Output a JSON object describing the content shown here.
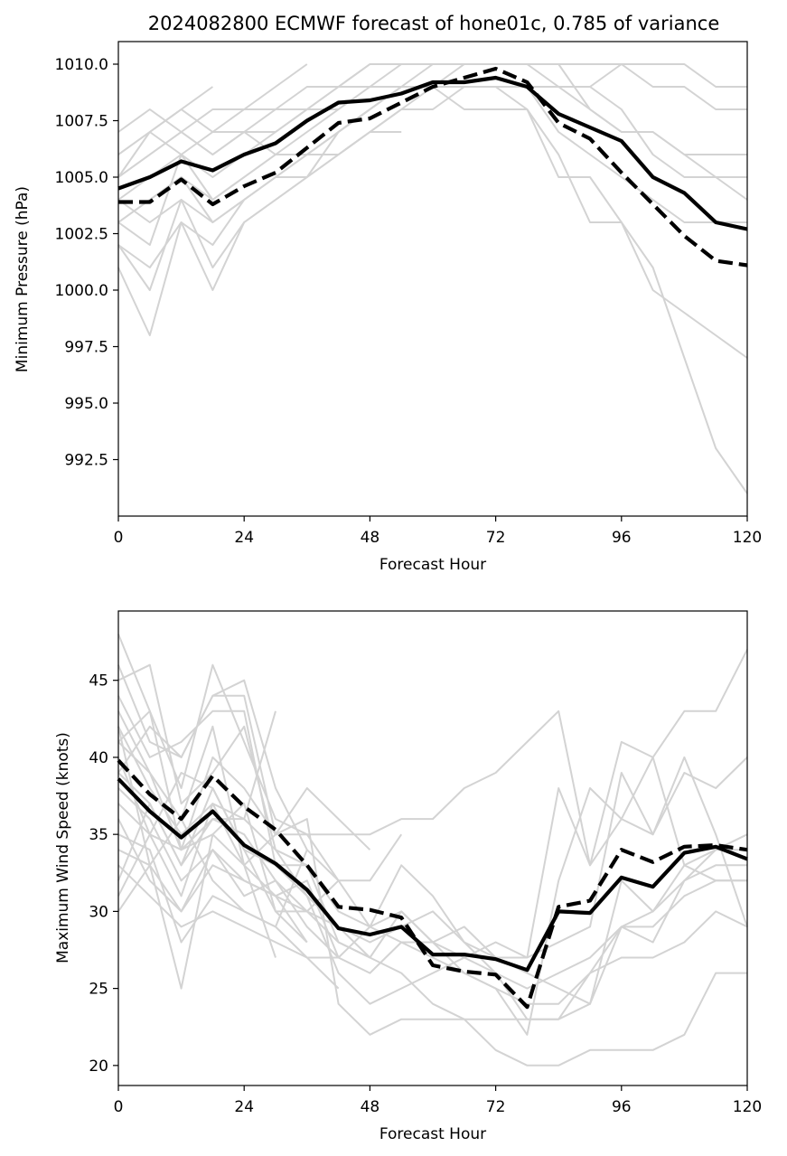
{
  "chart_data": [
    {
      "type": "line",
      "title": "2024082800 ECMWF forecast of hone01c, 0.785 of variance",
      "xlabel": "Forecast Hour",
      "ylabel": "Minimum Pressure (hPa)",
      "xlim": [
        0,
        120
      ],
      "ylim": [
        990.0,
        1011.0
      ],
      "xticks": [
        0,
        24,
        48,
        72,
        96,
        120
      ],
      "xtick_labels": [
        "0",
        "24",
        "48",
        "72",
        "96",
        "120"
      ],
      "yticks": [
        992.5,
        995.0,
        997.5,
        1000.0,
        1002.5,
        1005.0,
        1007.5,
        1010.0
      ],
      "ytick_labels": [
        "992.5",
        "995.0",
        "997.5",
        "1000.0",
        "1002.5",
        "1005.0",
        "1007.5",
        "1010.0"
      ],
      "grid": false,
      "colors": {
        "member": "#d3d3d3",
        "main": "#000000"
      },
      "x": [
        0,
        6,
        12,
        18,
        24,
        30,
        36,
        42,
        48,
        54,
        60,
        66,
        72,
        78,
        84,
        90,
        96,
        102,
        108,
        114,
        120
      ],
      "members": [
        {
          "values": [
            1006,
            1007,
            1008,
            1007,
            1008,
            1008,
            1009,
            1009,
            1010,
            1010,
            1010,
            1010,
            1010,
            1010,
            1010,
            1010,
            1010,
            1010,
            1010,
            1009,
            1009
          ]
        },
        {
          "values": [
            1005,
            1006,
            1007,
            1006,
            1007,
            1007,
            1008,
            1008,
            1009,
            1009,
            1009,
            1009,
            1009,
            1009,
            1009,
            1009,
            1010,
            1009,
            1009,
            1008,
            1008
          ]
        },
        {
          "values": [
            1004,
            1005,
            1006,
            1005,
            1006,
            1007,
            1008,
            1009,
            1009,
            1010,
            1010,
            1010,
            1010,
            1010,
            1010,
            1008,
            1007,
            1007,
            1006,
            1006,
            1006
          ]
        },
        {
          "values": [
            1003,
            1004,
            1005,
            1004,
            1005,
            1006,
            1006,
            1007,
            1008,
            1009,
            1009,
            1010,
            1010,
            1010,
            1009,
            1009,
            1008,
            1006,
            1005,
            1005,
            1004
          ]
        },
        {
          "values": [
            1003,
            1004,
            1005,
            1003,
            1004,
            1005,
            1006,
            1007,
            1008,
            1009,
            1009,
            1009,
            1009,
            1009,
            1007,
            1006,
            1005,
            1004,
            1003,
            1003,
            1003
          ]
        },
        {
          "values": [
            1002,
            1001,
            1003,
            1002,
            1004,
            1005,
            1006,
            1007,
            1008,
            1009,
            1009,
            1009,
            1009,
            1008,
            1005,
            1005,
            1003,
            1001,
            997,
            993,
            991
          ]
        },
        {
          "values": [
            1002,
            1000,
            1004,
            1001,
            1003,
            1004,
            1005,
            1006,
            1007,
            1008,
            1009,
            1008,
            1008,
            1008,
            1006,
            1003,
            1003,
            1000,
            999,
            998,
            997
          ]
        },
        {
          "values": [
            1001,
            998,
            1003,
            1000,
            1003,
            1004,
            1005,
            1006,
            1007,
            1008,
            1008,
            1009,
            1009,
            1009,
            1009,
            1008,
            1007,
            1007,
            1006,
            1005,
            1005
          ]
        },
        {
          "values": [
            1007,
            1008,
            1007,
            1008,
            1008,
            1009,
            1010
          ]
        },
        {
          "values": [
            1006,
            1007,
            1008,
            1009
          ]
        },
        {
          "values": [
            1005,
            1006,
            1007,
            1006,
            1007,
            1006,
            1006,
            1006,
            1007,
            1007
          ]
        },
        {
          "values": [
            1004,
            1003,
            1004,
            1003,
            1004,
            1005,
            1005,
            1007,
            1008,
            1009,
            1010,
            1010
          ]
        },
        {
          "values": [
            1003,
            1002,
            1006,
            1004,
            1005,
            1006,
            1007,
            1008
          ]
        },
        {
          "values": [
            1005,
            1007,
            1006,
            1007,
            1007,
            1008,
            1008,
            1009,
            1010
          ]
        }
      ],
      "series": [
        {
          "style": "solid",
          "values": [
            1004.5,
            1005.0,
            1005.7,
            1005.3,
            1006.0,
            1006.5,
            1007.5,
            1008.3,
            1008.4,
            1008.7,
            1009.2,
            1009.2,
            1009.4,
            1009.0,
            1007.8,
            1007.2,
            1006.6,
            1005.0,
            1004.3,
            1003.0,
            1002.7
          ]
        },
        {
          "style": "dashed",
          "values": [
            1003.9,
            1003.9,
            1004.9,
            1003.8,
            1004.6,
            1005.2,
            1006.3,
            1007.4,
            1007.6,
            1008.3,
            1009.0,
            1009.4,
            1009.8,
            1009.2,
            1007.4,
            1006.7,
            1005.2,
            1003.8,
            1002.4,
            1001.3,
            1001.1
          ]
        }
      ]
    },
    {
      "type": "line",
      "title": "",
      "xlabel": "Forecast Hour",
      "ylabel": "Maximum Wind Speed (knots)",
      "xlim": [
        0,
        120
      ],
      "ylim": [
        18.7,
        49.5
      ],
      "xticks": [
        0,
        24,
        48,
        72,
        96,
        120
      ],
      "xtick_labels": [
        "0",
        "24",
        "48",
        "72",
        "96",
        "120"
      ],
      "yticks": [
        20,
        25,
        30,
        35,
        40,
        45
      ],
      "ytick_labels": [
        "20",
        "25",
        "30",
        "35",
        "40",
        "45"
      ],
      "grid": false,
      "colors": {
        "member": "#d3d3d3",
        "main": "#000000"
      },
      "x": [
        0,
        6,
        12,
        18,
        24,
        30,
        36,
        42,
        48,
        54,
        60,
        66,
        72,
        78,
        84,
        90,
        96,
        102,
        108,
        114,
        120
      ],
      "members": [
        {
          "values": [
            48,
            43,
            38,
            46,
            41,
            36,
            35,
            35,
            35,
            36,
            36,
            38,
            39,
            41,
            43,
            33,
            36,
            40,
            43,
            43,
            47
          ]
        },
        {
          "values": [
            46,
            41,
            40,
            44,
            45,
            38,
            34,
            32,
            29,
            30,
            28,
            27,
            26,
            23,
            23,
            26,
            27,
            27,
            28,
            30,
            29
          ]
        },
        {
          "values": [
            45,
            46,
            37,
            39,
            42,
            34,
            33,
            30,
            29,
            28,
            27,
            26,
            25,
            24,
            24,
            26,
            29,
            30,
            32,
            34,
            35
          ]
        },
        {
          "values": [
            44,
            40,
            41,
            43,
            43,
            33,
            33,
            28,
            27,
            26,
            24,
            23,
            21,
            20,
            20,
            21,
            21,
            21,
            22,
            26,
            26
          ]
        },
        {
          "values": [
            43,
            39,
            36,
            42,
            33,
            31,
            32,
            27,
            26,
            28,
            28,
            29,
            27,
            27,
            38,
            33,
            41,
            40,
            33,
            32,
            32
          ]
        },
        {
          "values": [
            42,
            38,
            35,
            37,
            36,
            34,
            31,
            29,
            27,
            30,
            28,
            26,
            25,
            22,
            32,
            38,
            36,
            35,
            39,
            38,
            40
          ]
        },
        {
          "values": [
            41,
            43,
            34,
            40,
            38,
            35,
            36,
            24,
            22,
            23,
            23,
            23,
            23,
            23,
            23,
            24,
            32,
            30,
            33,
            34,
            34
          ]
        },
        {
          "values": [
            40,
            35,
            39,
            38,
            34,
            33,
            31,
            26,
            24,
            25,
            26,
            27,
            28,
            27,
            28,
            29,
            39,
            35,
            40,
            35,
            29
          ]
        },
        {
          "values": [
            39,
            37,
            33,
            36,
            35,
            32,
            30,
            29,
            28,
            29,
            30,
            28,
            27,
            26,
            25,
            24,
            29,
            28,
            32,
            33,
            33
          ]
        },
        {
          "values": [
            38,
            36,
            32,
            34,
            31,
            32,
            29,
            27,
            29,
            33,
            31,
            28,
            26,
            25,
            26,
            27,
            29,
            29,
            31,
            32,
            32
          ]
        },
        {
          "values": [
            37,
            35,
            34,
            35,
            37,
            30,
            28
          ]
        },
        {
          "values": [
            36,
            32,
            30,
            33,
            32,
            31,
            30,
            32
          ]
        },
        {
          "values": [
            35,
            34,
            28,
            31,
            30,
            29,
            27,
            25
          ]
        },
        {
          "values": [
            34,
            33,
            25,
            35,
            33,
            27
          ]
        },
        {
          "values": [
            33,
            31,
            29,
            30,
            29,
            28,
            27,
            27
          ]
        },
        {
          "values": [
            32,
            37,
            33,
            38,
            34,
            30,
            30,
            28,
            27
          ]
        },
        {
          "values": [
            31,
            35,
            31,
            37,
            33,
            35,
            35,
            32,
            32,
            35
          ]
        },
        {
          "values": [
            30,
            33,
            36,
            32,
            30,
            29,
            34
          ]
        },
        {
          "values": [
            39,
            42,
            40,
            44,
            44,
            35,
            38,
            36,
            34
          ]
        },
        {
          "values": [
            41,
            39,
            34,
            36,
            36,
            43
          ]
        },
        {
          "values": [
            42,
            33,
            30,
            34,
            32,
            31,
            28
          ]
        }
      ],
      "series": [
        {
          "style": "solid",
          "values": [
            38.6,
            36.5,
            34.8,
            36.5,
            34.3,
            33.1,
            31.4,
            28.9,
            28.5,
            29.0,
            27.2,
            27.2,
            26.9,
            26.2,
            30.0,
            29.9,
            32.2,
            31.6,
            33.8,
            34.2,
            33.4
          ]
        },
        {
          "style": "dashed",
          "values": [
            39.8,
            37.6,
            36.0,
            38.8,
            36.8,
            35.3,
            33.0,
            30.3,
            30.1,
            29.6,
            26.5,
            26.1,
            25.9,
            23.8,
            30.3,
            30.7,
            34.0,
            33.2,
            34.2,
            34.3,
            34.0
          ]
        }
      ]
    }
  ]
}
